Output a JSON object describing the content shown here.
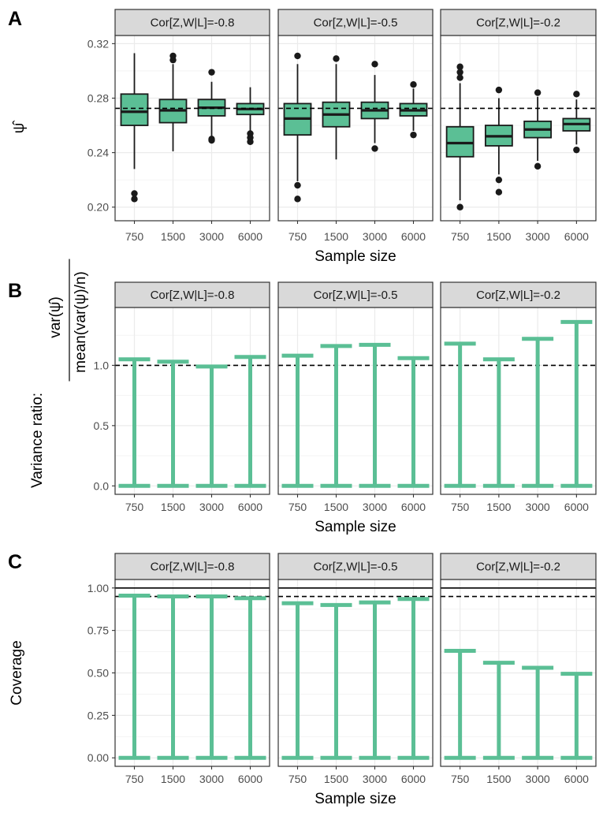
{
  "colors": {
    "fill": "#5bbf95",
    "outline": "#1a1a1a",
    "strip_bg": "#d9d9d9",
    "strip_border": "#333333",
    "grid": "#ebebeb"
  },
  "x_categories": [
    "750",
    "1500",
    "3000",
    "6000"
  ],
  "x_label": "Sample size",
  "facets": [
    "Cor[Z,W|L]=-0.8",
    "Cor[Z,W|L]=-0.5",
    "Cor[Z,W|L]=-0.2"
  ],
  "panel_letters": [
    "A",
    "B",
    "C"
  ],
  "chart_data": [
    {
      "panel": "A",
      "type": "box",
      "ylabel": "ψ̂",
      "xlabel": "Sample size",
      "ylim": [
        0.19,
        0.326
      ],
      "yticks": [
        0.2,
        0.24,
        0.28,
        0.32
      ],
      "ytick_labels": [
        "0.20",
        "0.24",
        "0.28",
        "0.32"
      ],
      "reference_line": {
        "y": 0.2725,
        "style": "dashed"
      },
      "grid": true,
      "facets": [
        {
          "label": "Cor[Z,W|L]=-0.8",
          "boxes": [
            {
              "x": "750",
              "lower": 0.228,
              "q1": 0.26,
              "median": 0.27,
              "q3": 0.283,
              "upper": 0.313,
              "outliers": [
                0.21,
                0.206
              ]
            },
            {
              "x": "1500",
              "lower": 0.241,
              "q1": 0.262,
              "median": 0.271,
              "q3": 0.279,
              "upper": 0.305,
              "outliers": [
                0.311,
                0.308
              ]
            },
            {
              "x": "3000",
              "lower": 0.252,
              "q1": 0.267,
              "median": 0.273,
              "q3": 0.279,
              "upper": 0.292,
              "outliers": [
                0.299,
                0.25,
                0.249
              ]
            },
            {
              "x": "6000",
              "lower": 0.256,
              "q1": 0.268,
              "median": 0.272,
              "q3": 0.276,
              "upper": 0.288,
              "outliers": [
                0.254,
                0.251,
                0.248
              ]
            }
          ]
        },
        {
          "label": "Cor[Z,W|L]=-0.5",
          "boxes": [
            {
              "x": "750",
              "lower": 0.219,
              "q1": 0.253,
              "median": 0.265,
              "q3": 0.276,
              "upper": 0.305,
              "outliers": [
                0.311,
                0.216,
                0.206
              ]
            },
            {
              "x": "1500",
              "lower": 0.235,
              "q1": 0.259,
              "median": 0.268,
              "q3": 0.277,
              "upper": 0.305,
              "outliers": [
                0.309
              ]
            },
            {
              "x": "3000",
              "lower": 0.247,
              "q1": 0.265,
              "median": 0.271,
              "q3": 0.277,
              "upper": 0.297,
              "outliers": [
                0.305,
                0.243
              ]
            },
            {
              "x": "6000",
              "lower": 0.256,
              "q1": 0.267,
              "median": 0.271,
              "q3": 0.276,
              "upper": 0.287,
              "outliers": [
                0.29,
                0.253
              ]
            }
          ]
        },
        {
          "label": "Cor[Z,W|L]=-0.2",
          "boxes": [
            {
              "x": "750",
              "lower": 0.205,
              "q1": 0.237,
              "median": 0.247,
              "q3": 0.259,
              "upper": 0.291,
              "outliers": [
                0.303,
                0.299,
                0.295,
                0.2
              ]
            },
            {
              "x": "1500",
              "lower": 0.224,
              "q1": 0.245,
              "median": 0.252,
              "q3": 0.26,
              "upper": 0.28,
              "outliers": [
                0.286,
                0.22,
                0.211
              ]
            },
            {
              "x": "3000",
              "lower": 0.234,
              "q1": 0.251,
              "median": 0.257,
              "q3": 0.263,
              "upper": 0.281,
              "outliers": [
                0.284,
                0.23
              ]
            },
            {
              "x": "6000",
              "lower": 0.246,
              "q1": 0.256,
              "median": 0.261,
              "q3": 0.265,
              "upper": 0.279,
              "outliers": [
                0.283,
                0.242
              ]
            }
          ]
        }
      ]
    },
    {
      "panel": "B",
      "type": "errorbar",
      "ylabel": "Variance ratio:",
      "ylabel_fraction": {
        "numerator": "var(ψ̂)",
        "denominator": "mean(var(ψ)/n)"
      },
      "xlabel": "Sample size",
      "ylim": [
        -0.07,
        1.48
      ],
      "yticks": [
        0.0,
        0.5,
        1.0
      ],
      "ytick_labels": [
        "0.0",
        "0.5",
        "1.0"
      ],
      "reference_line": {
        "y": 1.0,
        "style": "dashed"
      },
      "grid": true,
      "facets": [
        {
          "label": "Cor[Z,W|L]=-0.8",
          "values": [
            1.05,
            1.03,
            0.99,
            1.07
          ]
        },
        {
          "label": "Cor[Z,W|L]=-0.5",
          "values": [
            1.08,
            1.16,
            1.17,
            1.06
          ]
        },
        {
          "label": "Cor[Z,W|L]=-0.2",
          "values": [
            1.18,
            1.05,
            1.22,
            1.36
          ]
        }
      ]
    },
    {
      "panel": "C",
      "type": "errorbar",
      "ylabel": "Coverage",
      "xlabel": "Sample size",
      "ylim": [
        -0.05,
        1.05
      ],
      "yticks": [
        0.0,
        0.25,
        0.5,
        0.75,
        1.0
      ],
      "ytick_labels": [
        "0.00",
        "0.25",
        "0.50",
        "0.75",
        "1.00"
      ],
      "reference_lines": [
        {
          "y": 1.0,
          "style": "solid"
        },
        {
          "y": 0.95,
          "style": "dashed"
        }
      ],
      "grid": true,
      "facets": [
        {
          "label": "Cor[Z,W|L]=-0.8",
          "values": [
            0.955,
            0.95,
            0.95,
            0.94
          ]
        },
        {
          "label": "Cor[Z,W|L]=-0.5",
          "values": [
            0.91,
            0.9,
            0.915,
            0.935
          ]
        },
        {
          "label": "Cor[Z,W|L]=-0.2",
          "values": [
            0.63,
            0.56,
            0.53,
            0.495
          ]
        }
      ]
    }
  ]
}
